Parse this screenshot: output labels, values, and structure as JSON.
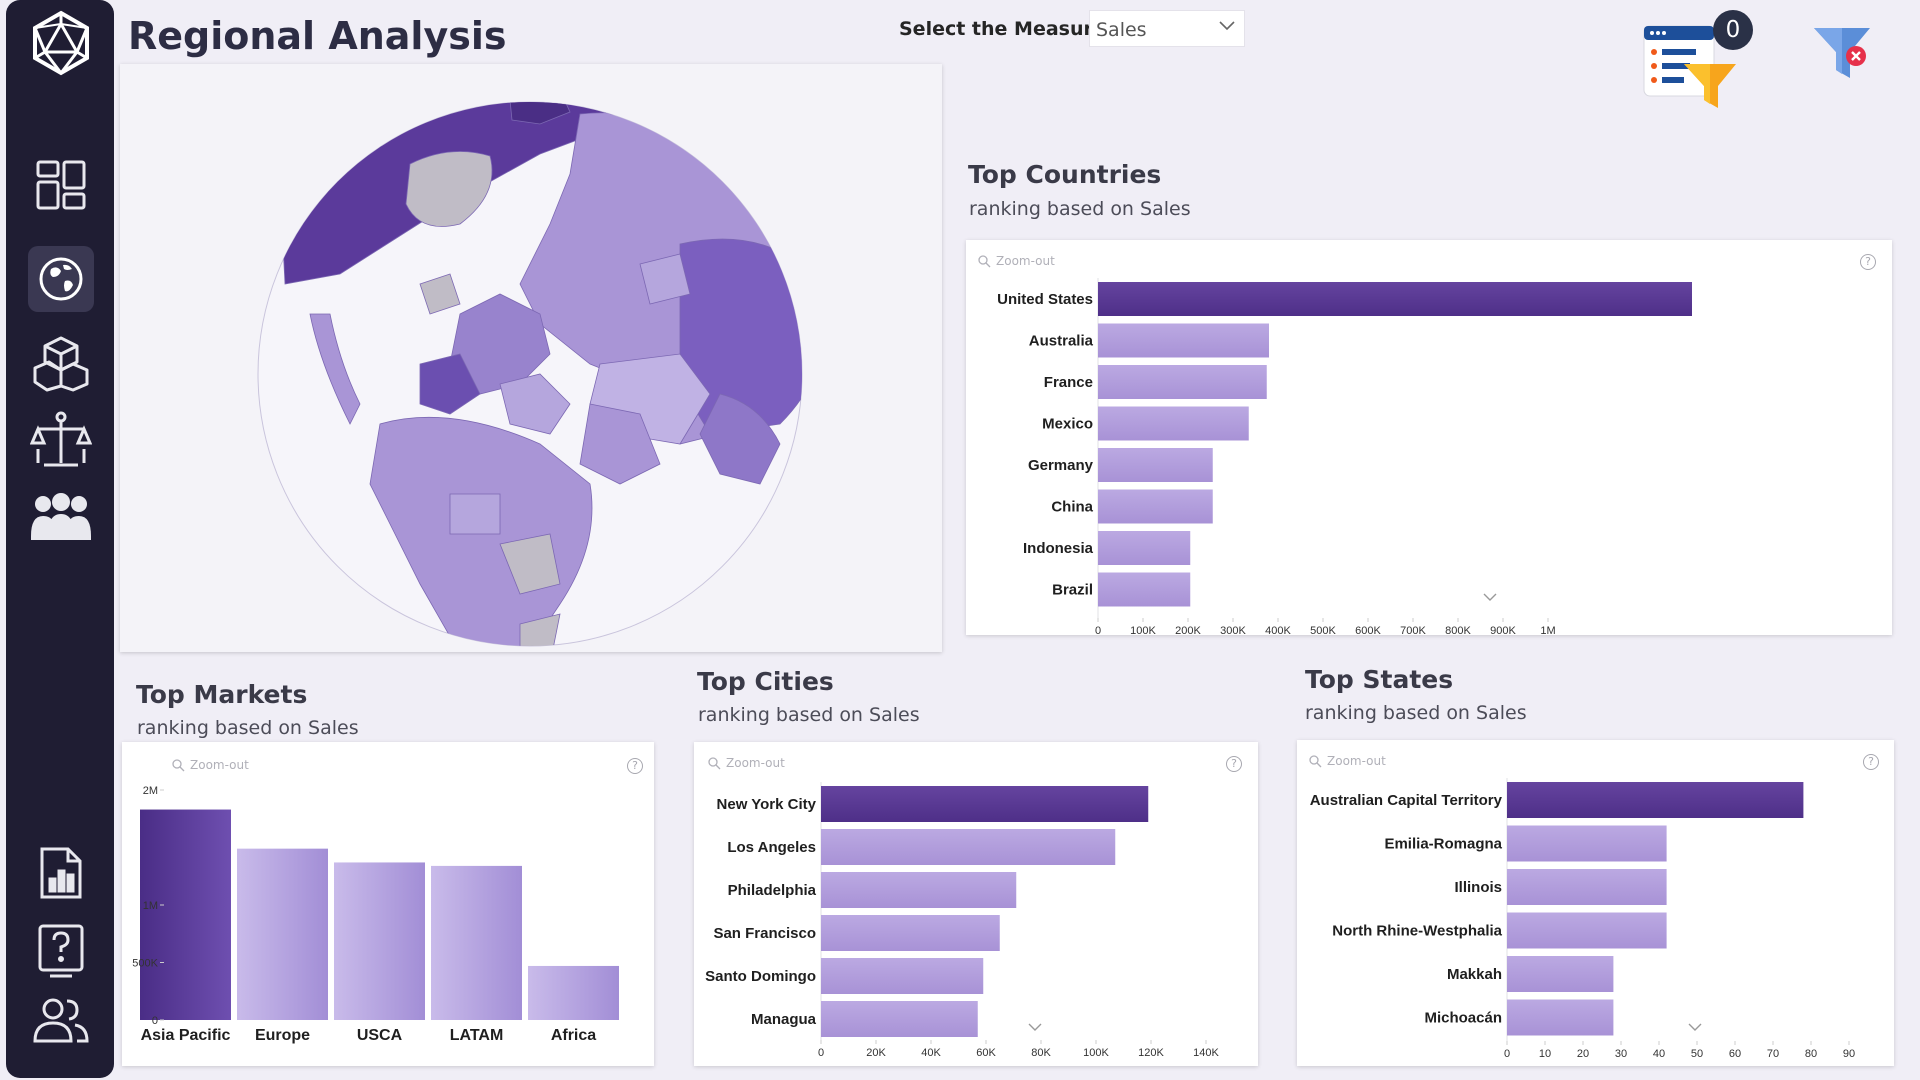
{
  "page": {
    "title": "Regional Analysis",
    "measure_label": "Select the Measure:",
    "measure_value": "Sales",
    "active_filters_count": "0"
  },
  "sidebar": {
    "items": [
      {
        "name": "logo",
        "icon": "logo-icon"
      },
      {
        "name": "dashboard",
        "icon": "dashboard-icon"
      },
      {
        "name": "regional",
        "icon": "globe-icon",
        "active": true
      },
      {
        "name": "products",
        "icon": "boxes-icon"
      },
      {
        "name": "balance",
        "icon": "scale-icon"
      },
      {
        "name": "customers",
        "icon": "people-icon"
      },
      {
        "name": "report",
        "icon": "report-icon"
      },
      {
        "name": "help",
        "icon": "help-icon"
      },
      {
        "name": "users",
        "icon": "users-icon"
      }
    ]
  },
  "map": {
    "icon": "globe-map-icon"
  },
  "zoom_label": "Zoom-out",
  "help_glyph": "?",
  "colors": {
    "bar_top": "#5e3d9c",
    "bar_light": "#b3a0dc",
    "map_dark": "#5b3a9b",
    "map_light": "#a995d6",
    "sidebar": "#1f1d33"
  },
  "sections": {
    "countries": {
      "title": "Top Countries",
      "subtitle": "ranking based on Sales"
    },
    "markets": {
      "title": "Top Markets",
      "subtitle": "ranking based on Sales"
    },
    "cities": {
      "title": "Top Cities",
      "subtitle": "ranking based on Sales"
    },
    "states": {
      "title": "Top States",
      "subtitle": "ranking based on Sales"
    }
  },
  "chart_data": [
    {
      "id": "countries",
      "type": "bar",
      "orientation": "horizontal",
      "categories": [
        "United States",
        "Australia",
        "France",
        "Mexico",
        "Germany",
        "China",
        "Indonesia",
        "Brazil"
      ],
      "values": [
        1320000,
        380000,
        375000,
        335000,
        255000,
        255000,
        205000,
        205000
      ],
      "ticks": [
        0,
        100000,
        200000,
        300000,
        400000,
        500000,
        600000,
        700000,
        800000,
        900000,
        1000000
      ],
      "tick_labels": [
        "0",
        "100K",
        "200K",
        "300K",
        "400K",
        "500K",
        "600K",
        "700K",
        "800K",
        "900K",
        "1M"
      ],
      "xlim": [
        0,
        1720000
      ]
    },
    {
      "id": "markets",
      "type": "bar",
      "orientation": "vertical",
      "categories": [
        "Asia Pacific",
        "Europe",
        "USCA",
        "LATAM",
        "Africa"
      ],
      "values": [
        1830000,
        1490000,
        1370000,
        1340000,
        470000
      ],
      "ticks": [
        0,
        500000,
        1000000,
        2000000
      ],
      "tick_labels": [
        "0",
        "500K",
        "1M",
        "2M"
      ],
      "ylim": [
        0,
        2000000
      ]
    },
    {
      "id": "cities",
      "type": "bar",
      "orientation": "horizontal",
      "categories": [
        "New York City",
        "Los Angeles",
        "Philadelphia",
        "San Francisco",
        "Santo Domingo",
        "Managua"
      ],
      "values": [
        119000,
        107000,
        71000,
        65000,
        59000,
        57000
      ],
      "ticks": [
        0,
        20000,
        40000,
        60000,
        80000,
        100000,
        120000,
        140000
      ],
      "tick_labels": [
        "0",
        "20K",
        "40K",
        "60K",
        "80K",
        "100K",
        "120K",
        "140K"
      ],
      "xlim": [
        0,
        140000
      ]
    },
    {
      "id": "states",
      "type": "bar",
      "orientation": "horizontal",
      "categories": [
        "Australian Capital Territory",
        "Emilia-Romagna",
        "Illinois",
        "North Rhine-Westphalia",
        "Makkah",
        "Michoacán"
      ],
      "values": [
        78,
        42,
        42,
        42,
        28,
        28
      ],
      "ticks": [
        0,
        10,
        20,
        30,
        40,
        50,
        60,
        70,
        80,
        90
      ],
      "tick_labels": [
        "0",
        "10",
        "20",
        "30",
        "40",
        "50",
        "60",
        "70",
        "80",
        "90"
      ],
      "xlim": [
        0,
        90
      ]
    }
  ]
}
